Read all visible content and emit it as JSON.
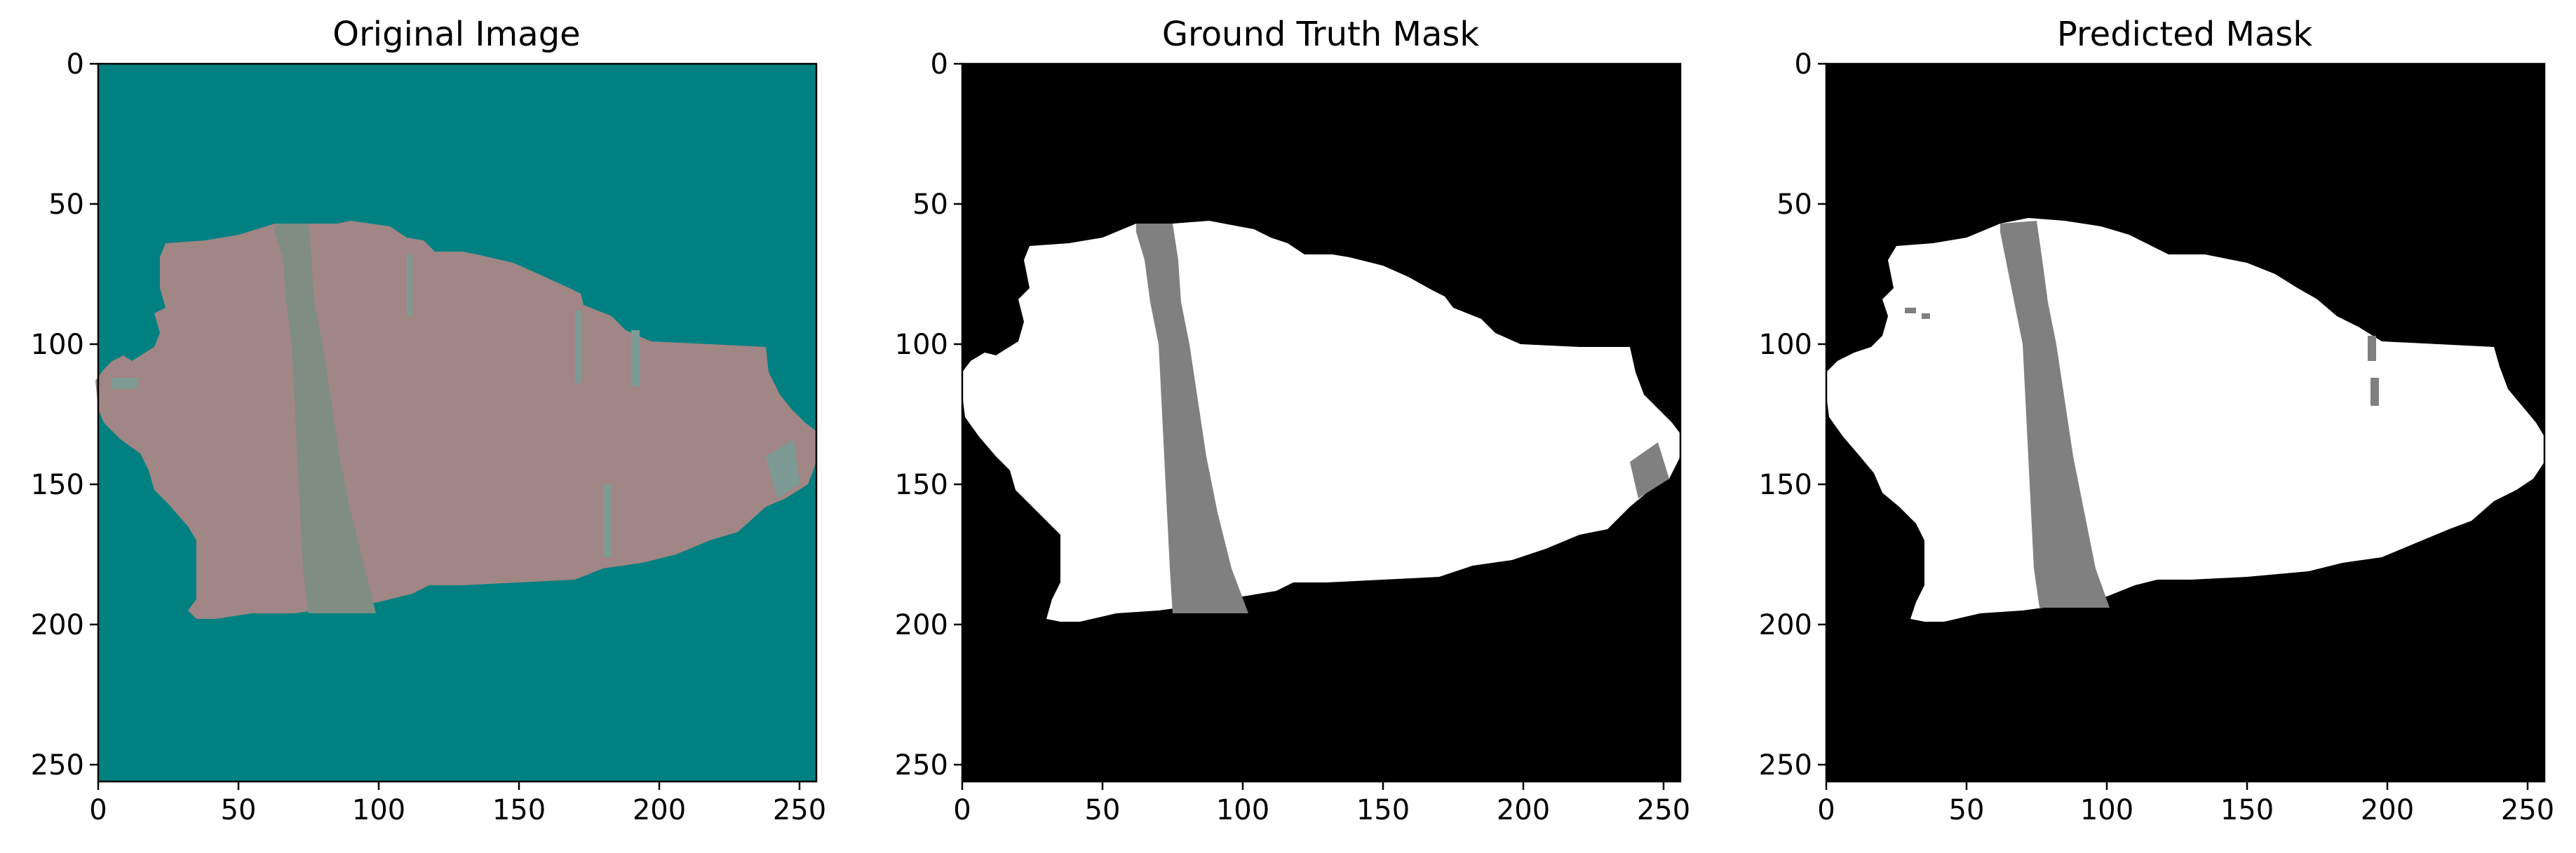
{
  "chart_data": [
    {
      "type": "image",
      "title": "Original Image",
      "xlim": [
        0,
        256
      ],
      "ylim": [
        256,
        0
      ],
      "xticks": [
        0,
        50,
        100,
        150,
        200,
        250
      ],
      "yticks": [
        0,
        50,
        100,
        150,
        200,
        250
      ],
      "colors": {
        "background": "#008080",
        "tissue": "#a08685",
        "band": "#7f8d83",
        "marks": "#7d9b94"
      },
      "tissue_outline": [
        [
          -1,
          113
        ],
        [
          2,
          109
        ],
        [
          5,
          106
        ],
        [
          9,
          104
        ],
        [
          12,
          106
        ],
        [
          20,
          101
        ],
        [
          22,
          96
        ],
        [
          20,
          89
        ],
        [
          24,
          87
        ],
        [
          22,
          80
        ],
        [
          22,
          69
        ],
        [
          24,
          64
        ],
        [
          38,
          63
        ],
        [
          50,
          61
        ],
        [
          63,
          57
        ],
        [
          75,
          57
        ],
        [
          85,
          57
        ],
        [
          90,
          56
        ],
        [
          104,
          58
        ],
        [
          110,
          62
        ],
        [
          116,
          63
        ],
        [
          120,
          67
        ],
        [
          130,
          67
        ],
        [
          135,
          68
        ],
        [
          148,
          71
        ],
        [
          157,
          75
        ],
        [
          168,
          80
        ],
        [
          172,
          82
        ],
        [
          173,
          86
        ],
        [
          183,
          90
        ],
        [
          188,
          95
        ],
        [
          197,
          99
        ],
        [
          218,
          100
        ],
        [
          238,
          101
        ],
        [
          239,
          110
        ],
        [
          243,
          118
        ],
        [
          247,
          123
        ],
        [
          252,
          128
        ],
        [
          256,
          131
        ],
        [
          256,
          142
        ],
        [
          253,
          150
        ],
        [
          245,
          155
        ],
        [
          238,
          158
        ],
        [
          228,
          167
        ],
        [
          218,
          170
        ],
        [
          206,
          175
        ],
        [
          194,
          178
        ],
        [
          180,
          180
        ],
        [
          170,
          184
        ],
        [
          150,
          185
        ],
        [
          130,
          186
        ],
        [
          118,
          186
        ],
        [
          112,
          189
        ],
        [
          100,
          192
        ],
        [
          85,
          194
        ],
        [
          70,
          196
        ],
        [
          55,
          196
        ],
        [
          42,
          198
        ],
        [
          35,
          198
        ],
        [
          32,
          195
        ],
        [
          35,
          191
        ],
        [
          35,
          170
        ],
        [
          32,
          165
        ],
        [
          25,
          157
        ],
        [
          20,
          152
        ],
        [
          18,
          145
        ],
        [
          15,
          139
        ],
        [
          8,
          134
        ],
        [
          2,
          128
        ],
        [
          0,
          123
        ]
      ],
      "band_outline": [
        [
          63,
          57
        ],
        [
          75,
          57
        ],
        [
          76,
          70
        ],
        [
          77,
          85
        ],
        [
          80,
          100
        ],
        [
          83,
          120
        ],
        [
          86,
          140
        ],
        [
          90,
          160
        ],
        [
          95,
          180
        ],
        [
          99,
          196
        ],
        [
          75,
          196
        ],
        [
          73,
          180
        ],
        [
          72,
          160
        ],
        [
          71,
          140
        ],
        [
          70,
          120
        ],
        [
          69,
          100
        ],
        [
          67,
          85
        ],
        [
          66,
          70
        ],
        [
          63,
          60
        ]
      ],
      "marks": [
        [
          [
            110,
            68
          ],
          [
            112,
            68
          ],
          [
            112,
            90
          ],
          [
            110,
            90
          ]
        ],
        [
          [
            170,
            88
          ],
          [
            172,
            88
          ],
          [
            172,
            114
          ],
          [
            170,
            114
          ]
        ],
        [
          [
            190,
            95
          ],
          [
            193,
            95
          ],
          [
            193,
            115
          ],
          [
            190,
            115
          ]
        ],
        [
          [
            180,
            150
          ],
          [
            183,
            150
          ],
          [
            183,
            176
          ],
          [
            180,
            176
          ]
        ],
        [
          [
            238,
            140
          ],
          [
            248,
            134
          ],
          [
            250,
            150
          ],
          [
            242,
            155
          ]
        ],
        [
          [
            5,
            112
          ],
          [
            14,
            112
          ],
          [
            14,
            116
          ],
          [
            5,
            116
          ]
        ]
      ]
    },
    {
      "type": "image",
      "title": "Ground Truth Mask",
      "xlim": [
        0,
        256
      ],
      "ylim": [
        256,
        0
      ],
      "xticks": [
        0,
        50,
        100,
        150,
        200,
        250
      ],
      "yticks": [
        0,
        50,
        100,
        150,
        200,
        250
      ],
      "colors": {
        "background": "#000000",
        "tissue": "#ffffff",
        "band": "#808080"
      },
      "tissue_outline": [
        [
          0,
          110
        ],
        [
          3,
          106
        ],
        [
          8,
          103
        ],
        [
          12,
          104
        ],
        [
          20,
          99
        ],
        [
          22,
          92
        ],
        [
          20,
          84
        ],
        [
          24,
          80
        ],
        [
          22,
          70
        ],
        [
          24,
          65
        ],
        [
          38,
          64
        ],
        [
          50,
          62
        ],
        [
          62,
          57
        ],
        [
          75,
          57
        ],
        [
          88,
          56
        ],
        [
          104,
          59
        ],
        [
          110,
          62
        ],
        [
          116,
          64
        ],
        [
          122,
          68
        ],
        [
          132,
          68
        ],
        [
          138,
          69
        ],
        [
          150,
          72
        ],
        [
          159,
          76
        ],
        [
          168,
          81
        ],
        [
          172,
          83
        ],
        [
          175,
          87
        ],
        [
          185,
          91
        ],
        [
          190,
          96
        ],
        [
          199,
          100
        ],
        [
          220,
          101
        ],
        [
          238,
          101
        ],
        [
          240,
          110
        ],
        [
          243,
          118
        ],
        [
          248,
          123
        ],
        [
          253,
          128
        ],
        [
          256,
          132
        ],
        [
          256,
          140
        ],
        [
          252,
          148
        ],
        [
          244,
          153
        ],
        [
          238,
          158
        ],
        [
          230,
          166
        ],
        [
          220,
          168
        ],
        [
          208,
          173
        ],
        [
          196,
          177
        ],
        [
          182,
          179
        ],
        [
          170,
          183
        ],
        [
          150,
          184
        ],
        [
          130,
          185
        ],
        [
          118,
          185
        ],
        [
          112,
          188
        ],
        [
          100,
          190
        ],
        [
          85,
          193
        ],
        [
          70,
          195
        ],
        [
          55,
          196
        ],
        [
          42,
          199
        ],
        [
          35,
          199
        ],
        [
          30,
          198
        ],
        [
          32,
          191
        ],
        [
          35,
          185
        ],
        [
          35,
          168
        ],
        [
          30,
          163
        ],
        [
          24,
          157
        ],
        [
          19,
          152
        ],
        [
          17,
          145
        ],
        [
          12,
          140
        ],
        [
          6,
          133
        ],
        [
          1,
          126
        ],
        [
          0,
          118
        ]
      ],
      "band_outline": [
        [
          62,
          57
        ],
        [
          75,
          57
        ],
        [
          77,
          70
        ],
        [
          78,
          85
        ],
        [
          81,
          100
        ],
        [
          84,
          120
        ],
        [
          87,
          140
        ],
        [
          91,
          160
        ],
        [
          96,
          180
        ],
        [
          102,
          196
        ],
        [
          75,
          196
        ],
        [
          74,
          180
        ],
        [
          73,
          160
        ],
        [
          72,
          140
        ],
        [
          71,
          120
        ],
        [
          70,
          100
        ],
        [
          67,
          85
        ],
        [
          65,
          70
        ],
        [
          62,
          60
        ]
      ],
      "marks": [
        [
          [
            238,
            142
          ],
          [
            248,
            135
          ],
          [
            252,
            148
          ],
          [
            241,
            155
          ]
        ]
      ]
    },
    {
      "type": "image",
      "title": "Predicted Mask",
      "xlim": [
        0,
        256
      ],
      "ylim": [
        256,
        0
      ],
      "xticks": [
        0,
        50,
        100,
        150,
        200,
        250
      ],
      "yticks": [
        0,
        50,
        100,
        150,
        200,
        250
      ],
      "colors": {
        "background": "#000000",
        "tissue": "#ffffff",
        "band": "#808080"
      },
      "tissue_outline": [
        [
          0,
          110
        ],
        [
          4,
          106
        ],
        [
          10,
          103
        ],
        [
          16,
          101
        ],
        [
          20,
          97
        ],
        [
          22,
          90
        ],
        [
          20,
          84
        ],
        [
          24,
          80
        ],
        [
          22,
          70
        ],
        [
          25,
          65
        ],
        [
          38,
          64
        ],
        [
          50,
          62
        ],
        [
          62,
          57
        ],
        [
          72,
          55
        ],
        [
          85,
          56
        ],
        [
          98,
          58
        ],
        [
          108,
          61
        ],
        [
          114,
          64
        ],
        [
          122,
          68
        ],
        [
          135,
          68
        ],
        [
          150,
          71
        ],
        [
          160,
          75
        ],
        [
          168,
          80
        ],
        [
          175,
          84
        ],
        [
          182,
          90
        ],
        [
          190,
          94
        ],
        [
          198,
          99
        ],
        [
          218,
          100
        ],
        [
          238,
          101
        ],
        [
          240,
          108
        ],
        [
          243,
          116
        ],
        [
          248,
          122
        ],
        [
          253,
          128
        ],
        [
          256,
          133
        ],
        [
          256,
          142
        ],
        [
          252,
          148
        ],
        [
          246,
          152
        ],
        [
          238,
          156
        ],
        [
          230,
          163
        ],
        [
          222,
          166
        ],
        [
          210,
          171
        ],
        [
          198,
          176
        ],
        [
          184,
          178
        ],
        [
          172,
          181
        ],
        [
          150,
          183
        ],
        [
          130,
          184
        ],
        [
          118,
          184
        ],
        [
          110,
          186
        ],
        [
          100,
          190
        ],
        [
          85,
          193
        ],
        [
          70,
          195
        ],
        [
          55,
          196
        ],
        [
          42,
          199
        ],
        [
          35,
          199
        ],
        [
          30,
          198
        ],
        [
          32,
          192
        ],
        [
          35,
          186
        ],
        [
          35,
          170
        ],
        [
          32,
          164
        ],
        [
          26,
          158
        ],
        [
          20,
          153
        ],
        [
          17,
          146
        ],
        [
          12,
          140
        ],
        [
          6,
          133
        ],
        [
          1,
          126
        ],
        [
          0,
          118
        ]
      ],
      "band_outline": [
        [
          62,
          57
        ],
        [
          75,
          56
        ],
        [
          77,
          70
        ],
        [
          79,
          85
        ],
        [
          82,
          100
        ],
        [
          85,
          120
        ],
        [
          88,
          140
        ],
        [
          92,
          160
        ],
        [
          96,
          180
        ],
        [
          101,
          194
        ],
        [
          76,
          194
        ],
        [
          74,
          180
        ],
        [
          73,
          160
        ],
        [
          72,
          140
        ],
        [
          71,
          120
        ],
        [
          70,
          100
        ],
        [
          67,
          85
        ],
        [
          64,
          70
        ],
        [
          62,
          60
        ]
      ],
      "marks": [
        [
          [
            193,
            97
          ],
          [
            196,
            97
          ],
          [
            196,
            106
          ],
          [
            193,
            106
          ]
        ],
        [
          [
            194,
            112
          ],
          [
            197,
            112
          ],
          [
            197,
            122
          ],
          [
            194,
            122
          ]
        ],
        [
          [
            28,
            87
          ],
          [
            32,
            87
          ],
          [
            32,
            89
          ],
          [
            28,
            89
          ]
        ],
        [
          [
            34,
            89
          ],
          [
            37,
            89
          ],
          [
            37,
            91
          ],
          [
            34,
            91
          ]
        ]
      ]
    }
  ]
}
